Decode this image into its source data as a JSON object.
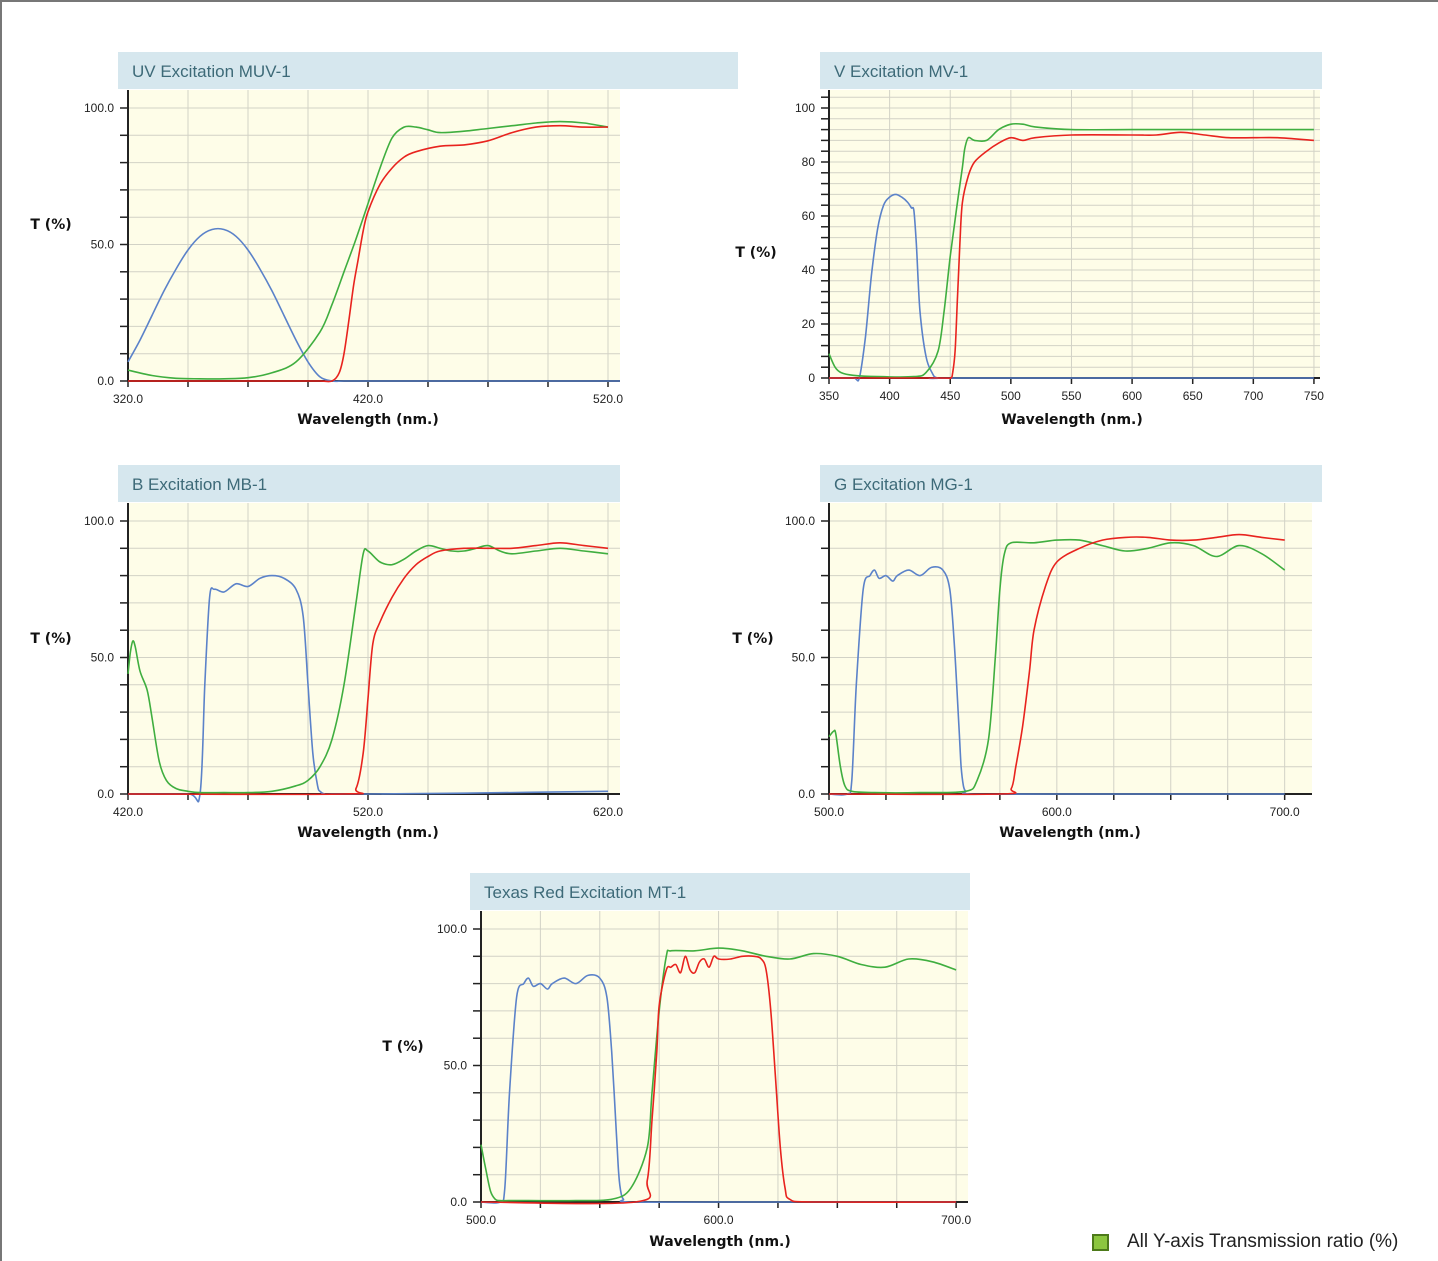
{
  "legend": {
    "text": "All Y-axis Transmission ratio (%)",
    "swatch_color": "#8cc63f"
  },
  "colors": {
    "panel_bg": "#fefde8",
    "title_bg": "#d6e7ee",
    "title_text": "#3d6a78",
    "grid": "#d2d2c6",
    "excitation": "#5b82c9",
    "dichroic": "#3fae3f",
    "emission": "#e8231e"
  },
  "chart_data": [
    {
      "type": "line",
      "title": "UV Excitation MUV-1",
      "xlabel": "Wavelength (nm.)",
      "ylabel": "T (%)",
      "xlim": [
        320,
        525
      ],
      "ylim": [
        0,
        100
      ],
      "xticks": [
        "320.0",
        "420.0",
        "520.0"
      ],
      "xtick_values": [
        320,
        420,
        520
      ],
      "yticks": [
        "0.0",
        "50.0",
        "100.0"
      ],
      "ytick_values": [
        0,
        50,
        100
      ],
      "grid": true,
      "series": [
        {
          "color": "#5b82c9",
          "x": [
            320,
            325,
            330,
            335,
            340,
            345,
            350,
            355,
            360,
            365,
            370,
            375,
            380,
            385,
            390,
            395,
            400,
            405,
            410,
            420,
            440,
            480,
            525
          ],
          "y": [
            7,
            15,
            24,
            33,
            41,
            48,
            53,
            55.5,
            55.5,
            53,
            48,
            41,
            33,
            24,
            15,
            7,
            1.5,
            0,
            0,
            0,
            0,
            0,
            0
          ]
        },
        {
          "color": "#3fae3f",
          "x": [
            320,
            330,
            340,
            350,
            360,
            370,
            380,
            390,
            400,
            405,
            410,
            415,
            420,
            425,
            430,
            435,
            440,
            445,
            450,
            460,
            470,
            480,
            490,
            500,
            510,
            520
          ],
          "y": [
            4,
            2,
            1,
            0.8,
            0.8,
            1.2,
            3,
            7,
            18,
            28,
            40,
            52,
            65,
            78,
            89,
            93,
            93,
            92,
            91,
            91.5,
            92.5,
            93.5,
            94.5,
            95,
            94.5,
            93
          ]
        },
        {
          "color": "#e8231e",
          "x": [
            320,
            360,
            390,
            400,
            405,
            408,
            410,
            412,
            414,
            416,
            418,
            420,
            425,
            430,
            435,
            440,
            450,
            460,
            470,
            480,
            490,
            500,
            510,
            520
          ],
          "y": [
            0,
            0,
            0,
            0,
            0,
            3,
            10,
            22,
            35,
            45,
            55,
            62,
            72,
            78,
            82,
            84,
            86,
            86.5,
            88,
            91,
            93,
            93.5,
            93,
            93
          ]
        }
      ]
    },
    {
      "type": "line",
      "title": "V Excitation MV-1",
      "xlabel": "Wavelength (nm.)",
      "ylabel": "T (%)",
      "xlim": [
        350,
        755
      ],
      "ylim": [
        0,
        117
      ],
      "xticks": [
        "350",
        "400",
        "450",
        "500",
        "550",
        "600",
        "650",
        "700",
        "750"
      ],
      "xtick_values": [
        350,
        400,
        450,
        500,
        550,
        600,
        650,
        700,
        750
      ],
      "yticks": [
        "0",
        "20",
        "40",
        "60",
        "80",
        "100"
      ],
      "ytick_values": [
        0,
        20,
        40,
        60,
        80,
        100
      ],
      "grid": true,
      "series": [
        {
          "color": "#5b82c9",
          "x": [
            350,
            370,
            375,
            380,
            385,
            390,
            395,
            400,
            405,
            410,
            415,
            418,
            420,
            422,
            425,
            430,
            435,
            440,
            460,
            750
          ],
          "y": [
            0,
            0,
            0,
            15,
            38,
            55,
            64,
            67,
            68,
            67,
            65,
            63,
            62,
            50,
            25,
            8,
            2,
            0,
            0,
            0
          ]
        },
        {
          "color": "#3fae3f",
          "x": [
            350,
            355,
            360,
            370,
            390,
            420,
            430,
            440,
            445,
            450,
            455,
            460,
            462,
            465,
            470,
            480,
            490,
            500,
            510,
            520,
            550,
            600,
            650,
            700,
            750
          ],
          "y": [
            9,
            4,
            2,
            1,
            0.5,
            0.5,
            2,
            10,
            25,
            45,
            62,
            78,
            85,
            89,
            88,
            88,
            92,
            94,
            94,
            93,
            92,
            92,
            92,
            92,
            92
          ]
        },
        {
          "color": "#e8231e",
          "x": [
            350,
            440,
            450,
            452,
            454,
            456,
            458,
            460,
            465,
            470,
            480,
            490,
            500,
            510,
            520,
            550,
            600,
            620,
            640,
            660,
            680,
            700,
            720,
            750
          ],
          "y": [
            0,
            0,
            0,
            2,
            10,
            30,
            50,
            65,
            75,
            80,
            84,
            87,
            89,
            88,
            89,
            90,
            90,
            90,
            91,
            90,
            89,
            89,
            89,
            88
          ]
        }
      ]
    },
    {
      "type": "line",
      "title": "B Excitation MB-1",
      "xlabel": "Wavelength (nm.)",
      "ylabel": "T (%)",
      "xlim": [
        420,
        625
      ],
      "ylim": [
        0,
        100
      ],
      "xticks": [
        "420.0",
        "520.0",
        "620.0"
      ],
      "xtick_values": [
        420,
        520,
        620
      ],
      "yticks": [
        "0.0",
        "50.0",
        "100.0"
      ],
      "ytick_values": [
        0,
        50,
        100
      ],
      "grid": true,
      "series": [
        {
          "color": "#5b82c9",
          "x": [
            420,
            445,
            450,
            452,
            454,
            456,
            460,
            465,
            470,
            475,
            480,
            485,
            490,
            493,
            495,
            497,
            499,
            500,
            502,
            505,
            520,
            560,
            620
          ],
          "y": [
            0,
            0,
            0,
            40,
            72,
            75,
            74,
            77,
            76,
            79,
            80,
            79,
            75,
            65,
            40,
            15,
            3,
            1,
            0,
            0,
            0,
            0.3,
            1
          ]
        },
        {
          "color": "#3fae3f",
          "x": [
            420,
            421,
            422,
            423,
            425,
            428,
            430,
            433,
            436,
            440,
            445,
            450,
            460,
            470,
            480,
            490,
            495,
            500,
            505,
            510,
            515,
            518,
            520,
            525,
            530,
            535,
            540,
            545,
            550,
            555,
            560,
            565,
            570,
            575,
            580,
            590,
            600,
            610,
            620
          ],
          "y": [
            44,
            52,
            56,
            54,
            45,
            38,
            28,
            12,
            5,
            2,
            1,
            0.5,
            0.5,
            0.5,
            1,
            3,
            5,
            10,
            20,
            40,
            70,
            88,
            89,
            85,
            84,
            86,
            89,
            91,
            90,
            89,
            89,
            90,
            91,
            89,
            88,
            89,
            90,
            89,
            88
          ]
        },
        {
          "color": "#e8231e",
          "x": [
            420,
            510,
            515,
            518,
            520,
            522,
            525,
            530,
            535,
            540,
            545,
            550,
            560,
            570,
            580,
            590,
            600,
            610,
            620
          ],
          "y": [
            0,
            0,
            2,
            15,
            35,
            55,
            63,
            72,
            79,
            84,
            87,
            89,
            90,
            90,
            90,
            91,
            92,
            91,
            90
          ]
        }
      ]
    },
    {
      "type": "line",
      "title": "G Excitation MG-1",
      "xlabel": "Wavelength (nm.)",
      "ylabel": "T (%)",
      "xlim": [
        500,
        712
      ],
      "ylim": [
        0,
        100
      ],
      "xticks": [
        "500.0",
        "600.0",
        "700.0"
      ],
      "xtick_values": [
        500,
        600,
        700
      ],
      "yticks": [
        "0.0",
        "50.0",
        "100.0"
      ],
      "ytick_values": [
        0,
        50,
        100
      ],
      "grid": true,
      "series": [
        {
          "color": "#5b82c9",
          "x": [
            500,
            508,
            510,
            512,
            515,
            518,
            520,
            522,
            525,
            528,
            530,
            535,
            540,
            545,
            550,
            553,
            555,
            557,
            558,
            559,
            560,
            562,
            600,
            700
          ],
          "y": [
            0,
            0,
            5,
            40,
            75,
            80,
            82,
            79,
            80,
            78,
            80,
            82,
            80,
            83,
            82,
            75,
            55,
            25,
            10,
            3,
            1,
            0,
            0,
            0
          ]
        },
        {
          "color": "#3fae3f",
          "x": [
            500,
            502,
            503,
            505,
            507,
            510,
            520,
            540,
            560,
            565,
            570,
            573,
            575,
            577,
            580,
            590,
            600,
            610,
            620,
            630,
            640,
            650,
            660,
            670,
            680,
            690,
            700
          ],
          "y": [
            21,
            23,
            22,
            10,
            3,
            1,
            0.5,
            0.5,
            1,
            5,
            20,
            50,
            75,
            88,
            92,
            92,
            93,
            93,
            91,
            89,
            90,
            92,
            91,
            87,
            91,
            88,
            82
          ]
        },
        {
          "color": "#e8231e",
          "x": [
            500,
            575,
            580,
            582,
            585,
            588,
            590,
            595,
            600,
            610,
            620,
            630,
            640,
            650,
            660,
            670,
            680,
            690,
            700
          ],
          "y": [
            0,
            0,
            2,
            10,
            25,
            45,
            60,
            76,
            85,
            90,
            93,
            94,
            94,
            93,
            93,
            94,
            95,
            94,
            93
          ]
        }
      ]
    },
    {
      "type": "line",
      "title": "Texas Red Excitation MT-1",
      "xlabel": "Wavelength (nm.)",
      "ylabel": "T (%)",
      "xlim": [
        500,
        705
      ],
      "ylim": [
        0,
        100
      ],
      "xticks": [
        "500.0",
        "600.0",
        "700.0"
      ],
      "xtick_values": [
        500,
        600,
        700
      ],
      "yticks": [
        "0.0",
        "50.0",
        "100.0"
      ],
      "ytick_values": [
        0,
        50,
        100
      ],
      "grid": true,
      "series": [
        {
          "color": "#5b82c9",
          "x": [
            500,
            508,
            510,
            512,
            515,
            518,
            520,
            522,
            525,
            528,
            530,
            535,
            540,
            545,
            550,
            553,
            555,
            557,
            558,
            559,
            560,
            562,
            600,
            700
          ],
          "y": [
            0,
            0,
            5,
            40,
            75,
            80,
            82,
            79,
            80,
            78,
            80,
            82,
            80,
            83,
            82,
            75,
            55,
            25,
            10,
            3,
            1,
            0,
            0,
            0
          ]
        },
        {
          "color": "#3fae3f",
          "x": [
            500,
            502,
            504,
            506,
            508,
            512,
            520,
            540,
            555,
            563,
            570,
            572,
            575,
            578,
            580,
            590,
            600,
            610,
            620,
            630,
            640,
            650,
            660,
            670,
            680,
            690,
            700
          ],
          "y": [
            21,
            12,
            4,
            1,
            0.5,
            0.5,
            0.5,
            0.5,
            1,
            5,
            20,
            40,
            70,
            90,
            92,
            92,
            93,
            92,
            90,
            89,
            91,
            90,
            87,
            86,
            89,
            88,
            85
          ]
        },
        {
          "color": "#e8231e",
          "x": [
            500,
            565,
            570,
            572,
            574,
            575,
            578,
            580,
            582,
            584,
            586,
            588,
            590,
            592,
            594,
            596,
            598,
            600,
            605,
            610,
            615,
            618,
            620,
            622,
            624,
            626,
            628,
            630,
            640,
            700
          ],
          "y": [
            0,
            0,
            8,
            30,
            55,
            72,
            85,
            86,
            87,
            84,
            90,
            85,
            84,
            88,
            89,
            86,
            90,
            89,
            89,
            90,
            90,
            89,
            85,
            70,
            45,
            20,
            5,
            1,
            0,
            0
          ]
        }
      ]
    }
  ]
}
